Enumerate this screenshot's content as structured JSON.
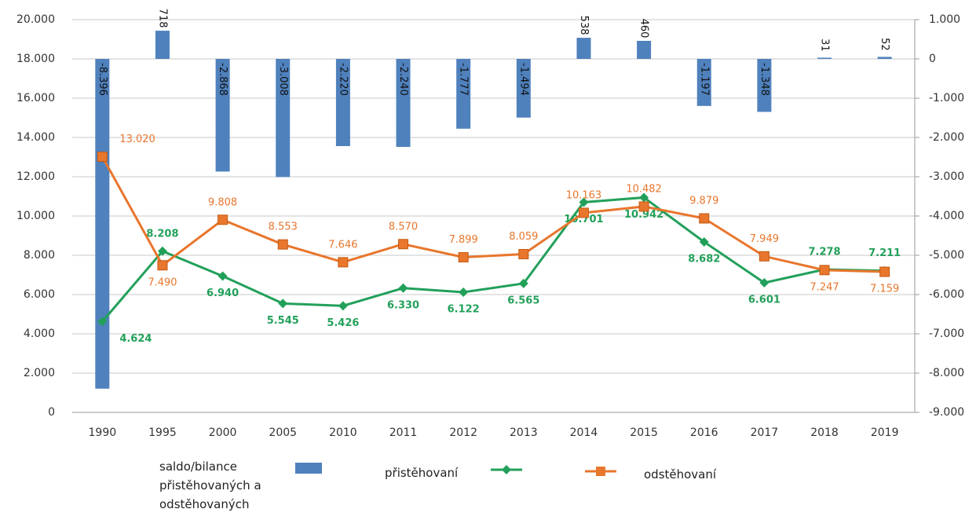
{
  "chart_data": {
    "type": "bar-line",
    "categories": [
      "1990",
      "1995",
      "2000",
      "2005",
      "2010",
      "2011",
      "2012",
      "2013",
      "2014",
      "2015",
      "2016",
      "2017",
      "2018",
      "2019"
    ],
    "series": [
      {
        "name": "saldo/bilance přistěhovaných a odstěhovaných",
        "type": "bar",
        "axis": "y2",
        "color": "#4f81bd",
        "values": [
          -8396,
          718,
          -2868,
          -3008,
          -2220,
          -2240,
          -1777,
          -1494,
          538,
          460,
          -1197,
          -1348,
          31,
          52
        ],
        "value_labels": [
          "-8.396",
          "718",
          "-2.868",
          "-3.008",
          "-2.220",
          "-2.240",
          "-1.777",
          "-1.494",
          "538",
          "460",
          "-1.197",
          "-1.348",
          "31",
          "52"
        ]
      },
      {
        "name": "přistěhovaní",
        "type": "line",
        "color": "#22a05a",
        "values": [
          4624,
          8208,
          6940,
          5545,
          5426,
          6330,
          6122,
          6565,
          10701,
          10942,
          8682,
          6601,
          7278,
          7211
        ],
        "value_labels": [
          "4.624",
          "8.208",
          "6.940",
          "5.545",
          "5.426",
          "6.330",
          "6.122",
          "6.565",
          "10.701",
          "10.942",
          "8.682",
          "6.601",
          "7.278",
          "7.211"
        ]
      },
      {
        "name": "odstěhovaní",
        "type": "line",
        "color": "#e8762d",
        "values": [
          13020,
          7490,
          9808,
          8553,
          7646,
          8570,
          7899,
          8059,
          10163,
          10482,
          9879,
          7949,
          7247,
          7159
        ],
        "value_labels": [
          "13.020",
          "7.490",
          "9.808",
          "8.553",
          "7.646",
          "8.570",
          "7.899",
          "8.059",
          "10.163",
          "10.482",
          "9.879",
          "7.949",
          "7.247",
          "7.159"
        ]
      }
    ],
    "ylim": [
      0,
      20000
    ],
    "yticks": [
      0,
      {
        "value": 2000,
        "label": "2.000"
      },
      {
        "value": 4000,
        "label": "4.000"
      },
      {
        "value": 6000,
        "label": "6.000"
      },
      {
        "value": 8000,
        "label": "8.000"
      },
      {
        "value": 10000,
        "label": "10.000"
      },
      {
        "value": 12000,
        "label": "12.000"
      },
      {
        "value": 14000,
        "label": "14.000"
      },
      {
        "value": 16000,
        "label": "16.000"
      },
      {
        "value": 18000,
        "label": "18.000"
      },
      {
        "value": 20000,
        "label": "20.000"
      }
    ],
    "y2lim": [
      -9000,
      1000
    ],
    "y2ticks": [
      {
        "value": -9000,
        "label": "-9.000"
      },
      {
        "value": -8000,
        "label": "-8.000"
      },
      {
        "value": -7000,
        "label": "-7.000"
      },
      {
        "value": -6000,
        "label": "-6.000"
      },
      {
        "value": -5000,
        "label": "-5.000"
      },
      {
        "value": -4000,
        "label": "-4.000"
      },
      {
        "value": -3000,
        "label": "-3.000"
      },
      {
        "value": -2000,
        "label": "-2.000"
      },
      {
        "value": -1000,
        "label": "-1.000"
      },
      0,
      {
        "value": 1000,
        "label": "1.000"
      }
    ],
    "grid": true
  }
}
